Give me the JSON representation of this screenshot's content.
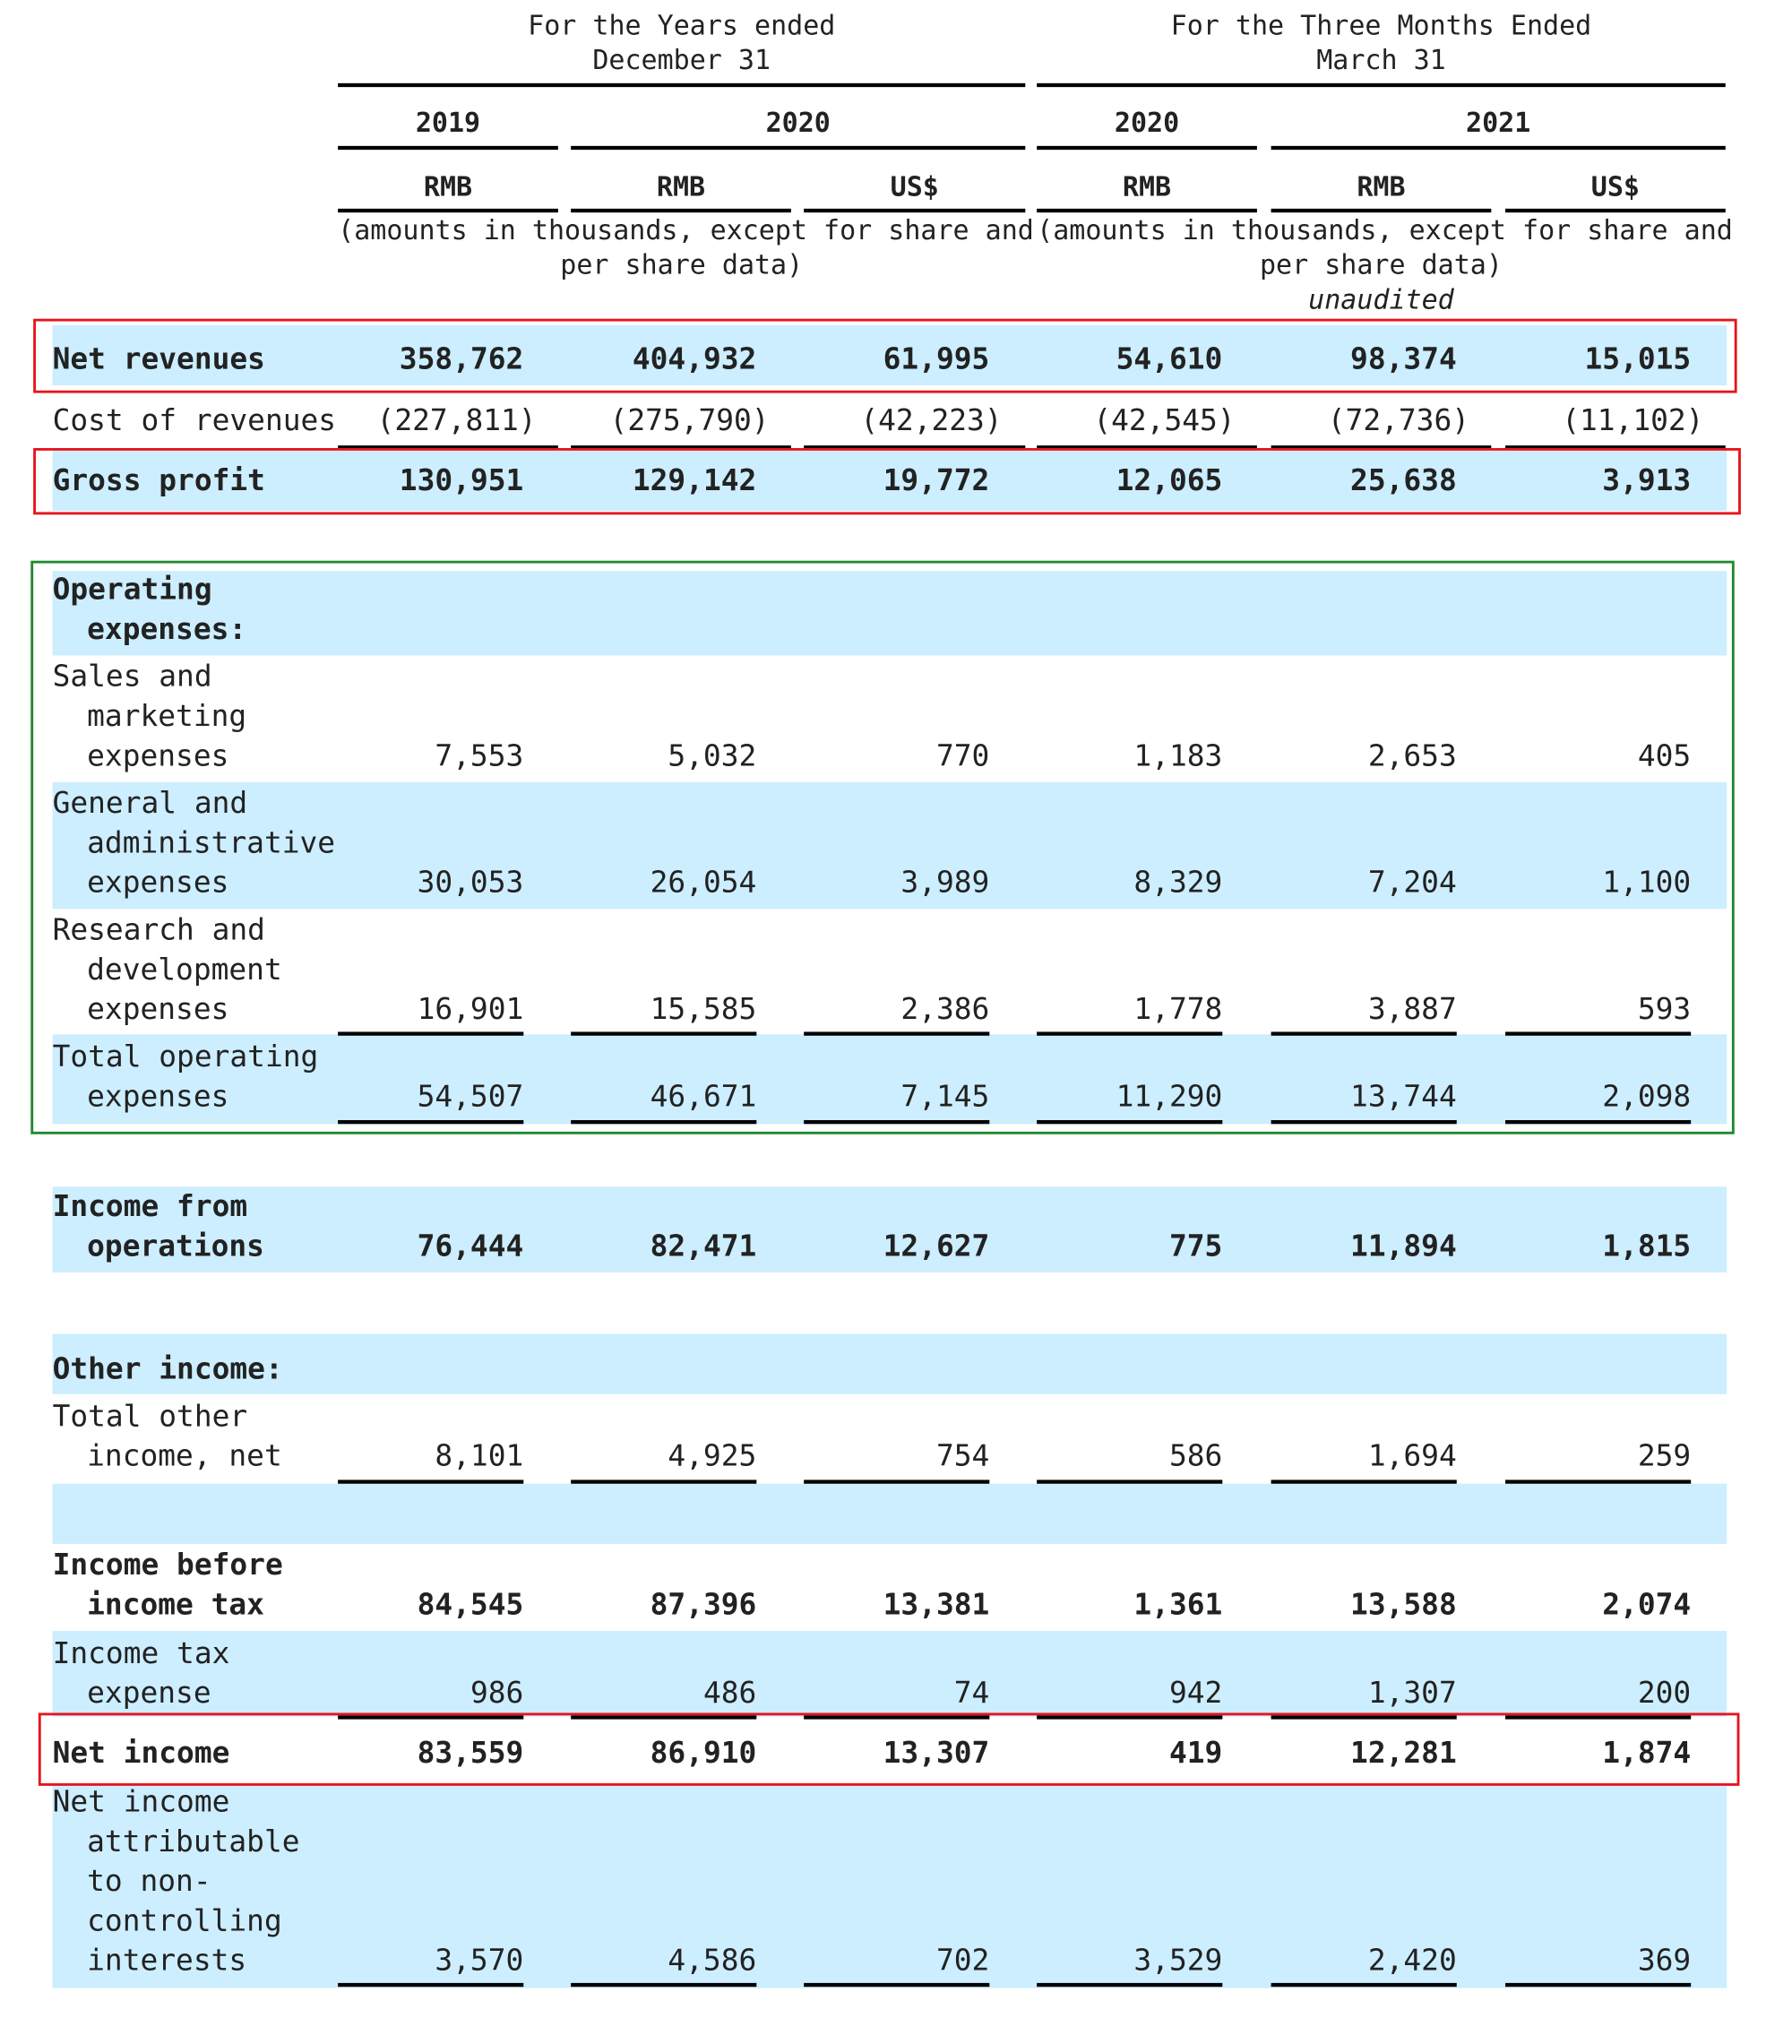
{
  "header": {
    "group1": [
      "For the Years ended",
      "December 31"
    ],
    "group2": [
      "For the Three Months Ended",
      "March 31"
    ],
    "years": [
      "2019",
      "2020",
      "2020",
      "2021"
    ],
    "currencies": [
      "RMB",
      "RMB",
      "US$",
      "RMB",
      "RMB",
      "US$"
    ],
    "amounts_note_1": [
      "(amounts in thousands, except for share and",
      "per share data)"
    ],
    "amounts_note_2": [
      "(amounts in thousands, except for share and",
      "per share data)"
    ],
    "unaudited": "unaudited"
  },
  "rows": {
    "net_revenues": {
      "label": [
        "Net revenues"
      ],
      "values": [
        "358,762",
        "404,932",
        "61,995",
        "54,610",
        "98,374",
        "15,015"
      ]
    },
    "cost_of_revenues": {
      "label": [
        "Cost of revenues"
      ],
      "values": [
        "(227,811)",
        "(275,790)",
        "(42,223)",
        "(42,545)",
        "(72,736)",
        "(11,102)"
      ]
    },
    "gross_profit": {
      "label": [
        "Gross profit"
      ],
      "values": [
        "130,951",
        "129,142",
        "19,772",
        "12,065",
        "25,638",
        "3,913"
      ]
    },
    "operating_expenses": {
      "label": [
        "Operating",
        "expenses:"
      ]
    },
    "sales_marketing": {
      "label": [
        "Sales and",
        "marketing",
        "expenses"
      ],
      "values": [
        "7,553",
        "5,032",
        "770",
        "1,183",
        "2,653",
        "405"
      ]
    },
    "general_admin": {
      "label": [
        "General and",
        "administrative",
        "expenses"
      ],
      "values": [
        "30,053",
        "26,054",
        "3,989",
        "8,329",
        "7,204",
        "1,100"
      ]
    },
    "research_dev": {
      "label": [
        "Research and",
        "development",
        "expenses"
      ],
      "values": [
        "16,901",
        "15,585",
        "2,386",
        "1,778",
        "3,887",
        "593"
      ]
    },
    "total_operating": {
      "label": [
        "Total operating",
        "expenses"
      ],
      "values": [
        "54,507",
        "46,671",
        "7,145",
        "11,290",
        "13,744",
        "2,098"
      ]
    },
    "income_from_operations": {
      "label": [
        "Income from",
        "operations"
      ],
      "values": [
        "76,444",
        "82,471",
        "12,627",
        "775",
        "11,894",
        "1,815"
      ]
    },
    "other_income": {
      "label": [
        "Other income:"
      ]
    },
    "total_other_income": {
      "label": [
        "Total other",
        "income, net"
      ],
      "values": [
        "8,101",
        "4,925",
        "754",
        "586",
        "1,694",
        "259"
      ]
    },
    "income_before_tax": {
      "label": [
        "Income before",
        "income tax"
      ],
      "values": [
        "84,545",
        "87,396",
        "13,381",
        "1,361",
        "13,588",
        "2,074"
      ]
    },
    "income_tax": {
      "label": [
        "Income tax",
        "expense"
      ],
      "values": [
        "986",
        "486",
        "74",
        "942",
        "1,307",
        "200"
      ]
    },
    "net_income": {
      "label": [
        "Net income"
      ],
      "values": [
        "83,559",
        "86,910",
        "13,307",
        "419",
        "12,281",
        "1,874"
      ]
    },
    "nci": {
      "label": [
        "Net income",
        "attributable",
        "to non-",
        "controlling",
        "interests"
      ],
      "values": [
        "3,570",
        "4,586",
        "702",
        "3,529",
        "2,420",
        "369"
      ]
    }
  },
  "colors": {
    "band": "#cceeff",
    "highlight_red": "#e8141c",
    "highlight_green": "#1f8a2e"
  }
}
